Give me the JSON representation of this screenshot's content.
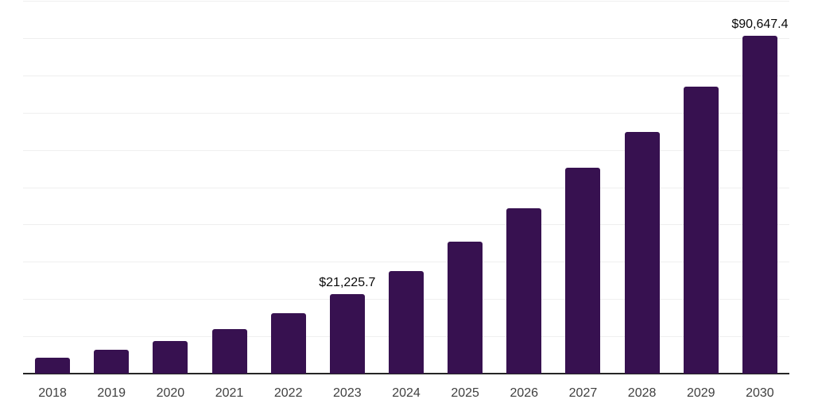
{
  "chart_data": {
    "type": "bar",
    "title": "",
    "xlabel": "",
    "ylabel": "",
    "categories": [
      "2018",
      "2019",
      "2020",
      "2021",
      "2022",
      "2023",
      "2024",
      "2025",
      "2026",
      "2027",
      "2028",
      "2029",
      "2030"
    ],
    "values": [
      4200,
      6300,
      8800,
      12000,
      16100,
      21225.7,
      27600,
      35300,
      44400,
      55200,
      64800,
      77000,
      90647.4
    ],
    "annotations": [
      {
        "category": "2023",
        "text": "$21,225.7"
      },
      {
        "category": "2030",
        "text": "$90,647.4"
      }
    ],
    "ylim": [
      0,
      100000
    ],
    "gridline_step": 10000,
    "grid": "horizontal gridlines only, no y-axis tick labels, no legend",
    "legend_position": "none",
    "colors": {
      "bar": "#371150",
      "axis": "#262626",
      "gridline": "#efefef",
      "tick_label": "#404040",
      "data_label": "#0a0a0a",
      "background": "#ffffff"
    }
  }
}
